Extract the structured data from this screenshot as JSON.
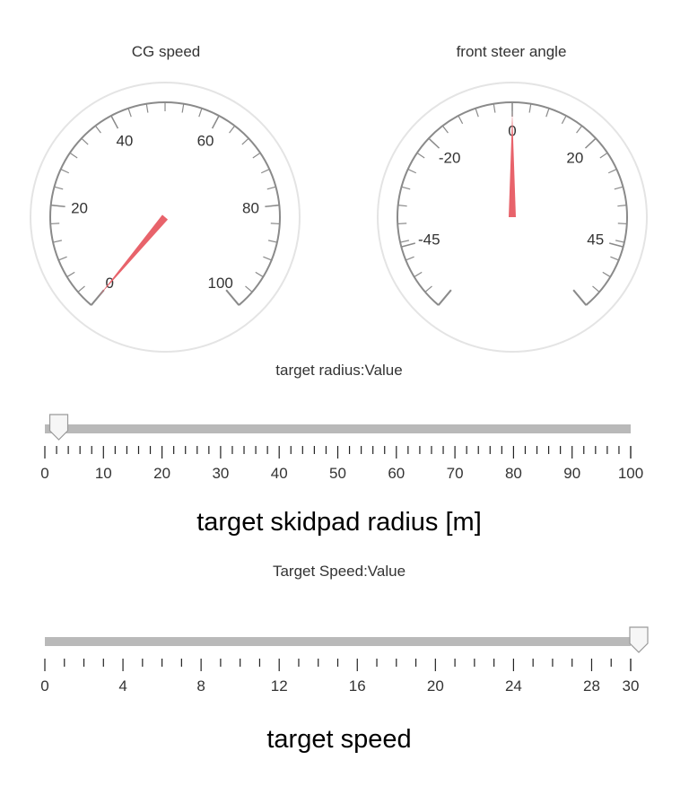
{
  "gauges": [
    {
      "title": "CG speed",
      "min": 0,
      "max": 100,
      "value": 0,
      "start_angle_deg": -140,
      "end_angle_deg": 140,
      "labels": [
        "0",
        "20",
        "40",
        "60",
        "80",
        "100"
      ],
      "label_values": [
        0,
        20,
        40,
        60,
        80,
        100
      ],
      "needle_color": "#e8636b"
    },
    {
      "title": "front steer angle",
      "min": -60,
      "max": 60,
      "value": 0,
      "start_angle_deg": -140,
      "end_angle_deg": 140,
      "labels": [
        "-45",
        "-20",
        "0",
        "20",
        "45"
      ],
      "label_values": [
        -45,
        -20,
        0,
        20,
        45
      ],
      "needle_color": "#e8636b"
    }
  ],
  "sliders": [
    {
      "name": "radius",
      "header": "target radius:Value",
      "caption": "target skidpad radius [m]",
      "min": 0,
      "max": 100,
      "value": 1,
      "labels": [
        "0",
        "10",
        "20",
        "30",
        "40",
        "50",
        "60",
        "70",
        "80",
        "90",
        "100"
      ],
      "label_values": [
        0,
        10,
        20,
        30,
        40,
        50,
        60,
        70,
        80,
        90,
        100
      ],
      "minor_step": 2
    },
    {
      "name": "speed",
      "header": "Target Speed:Value",
      "caption": "target speed",
      "min": 0,
      "max": 30,
      "value": 30,
      "labels": [
        "0",
        "4",
        "8",
        "12",
        "16",
        "20",
        "24",
        "28",
        "30"
      ],
      "label_values": [
        0,
        4,
        8,
        12,
        16,
        20,
        24,
        28,
        30
      ],
      "minor_step": 1
    }
  ],
  "colors": {
    "needle": "#e8636b",
    "track": "#b9b9b9",
    "dial_line": "#8a8a8a",
    "bezel": "#e4e4e4"
  }
}
